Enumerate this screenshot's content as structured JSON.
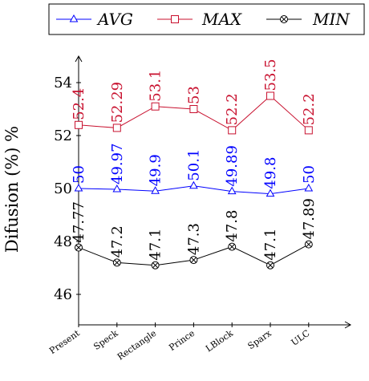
{
  "chart_data": {
    "type": "line",
    "ylabel": "Difusion (%) %",
    "categories": [
      "Present",
      "Speck",
      "Rectangle",
      "Prince",
      "LBlock",
      "Sparx",
      "ULC"
    ],
    "ylim": [
      45,
      57
    ],
    "yticks": [
      46,
      48,
      50,
      52,
      54
    ],
    "legend_position": "top",
    "grid": false,
    "series": [
      {
        "name": "AVG",
        "color": "#0000ff",
        "marker": "triangle",
        "values": [
          50,
          49.97,
          49.9,
          50.1,
          49.89,
          49.8,
          50
        ],
        "labels": [
          "50",
          "49.97",
          "49.9",
          "50.1",
          "49.89",
          "49.8",
          "50"
        ]
      },
      {
        "name": "MAX",
        "color": "#c8102e",
        "marker": "square",
        "values": [
          52.4,
          52.29,
          53.1,
          53,
          52.2,
          53.5,
          52.2
        ],
        "labels": [
          "52.4",
          "52.29",
          "53.1",
          "53",
          "52.2",
          "53.5",
          "52.2"
        ]
      },
      {
        "name": "MIN",
        "color": "#000000",
        "marker": "otimes",
        "values": [
          47.77,
          47.2,
          47.1,
          47.3,
          47.8,
          47.1,
          47.89
        ],
        "labels": [
          "47.77",
          "47.2",
          "47.1",
          "47.3",
          "47.8",
          "47.1",
          "47.89"
        ]
      }
    ]
  }
}
